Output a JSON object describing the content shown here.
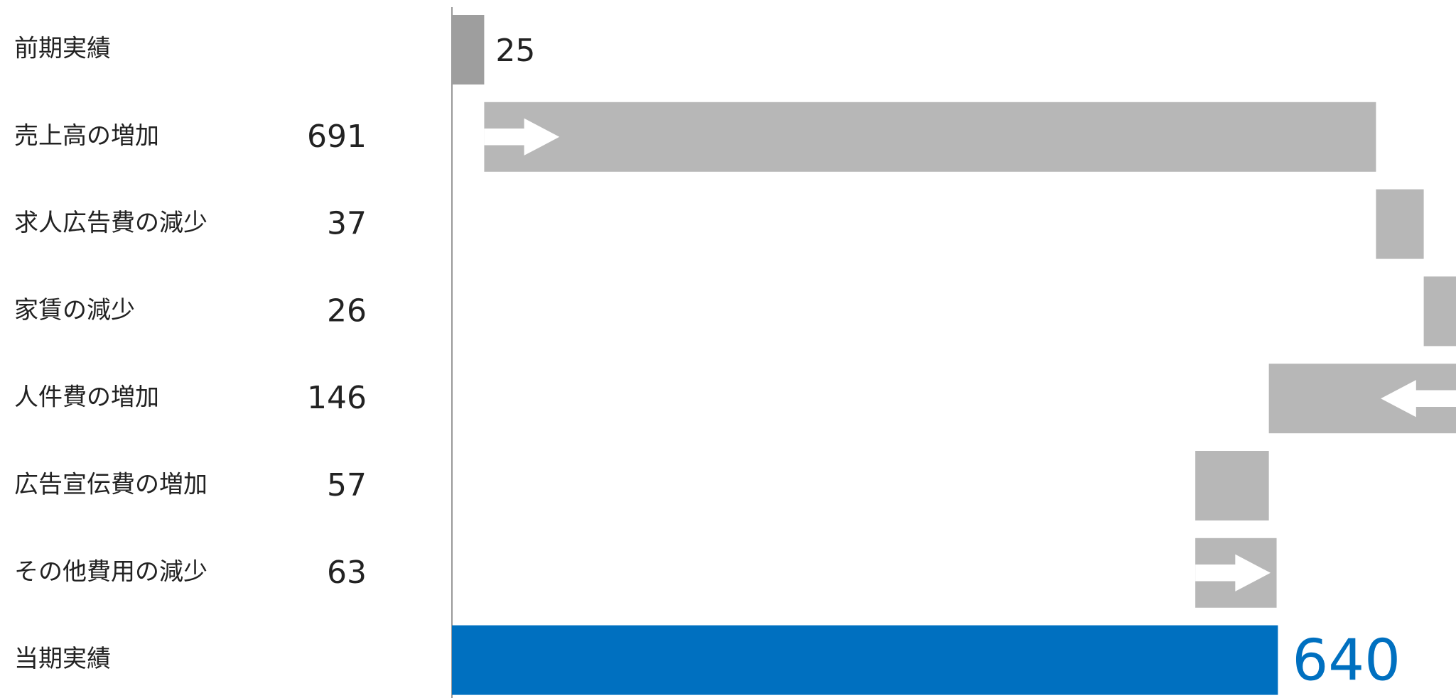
{
  "chart_data": {
    "type": "waterfall",
    "orientation": "horizontal",
    "categories": [
      "前期実績",
      "売上高の増加",
      "求人広告費の減少",
      "家賃の減少",
      "人件費の増加",
      "広告宣伝費の増加",
      "その他費用の減少",
      "当期実績"
    ],
    "values": [
      25,
      691,
      37,
      26,
      -146,
      -57,
      63,
      640
    ],
    "value_labels": [
      "25",
      "691",
      "37",
      "26",
      "146",
      "57",
      "63",
      "640"
    ],
    "measure": [
      "absolute",
      "relative",
      "relative",
      "relative",
      "relative",
      "relative",
      "relative",
      "total"
    ],
    "colors": {
      "absolute": "#9e9e9e",
      "relative": "#b7b7b7",
      "total": "#0070c0"
    },
    "xlim": [
      0,
      778
    ]
  }
}
